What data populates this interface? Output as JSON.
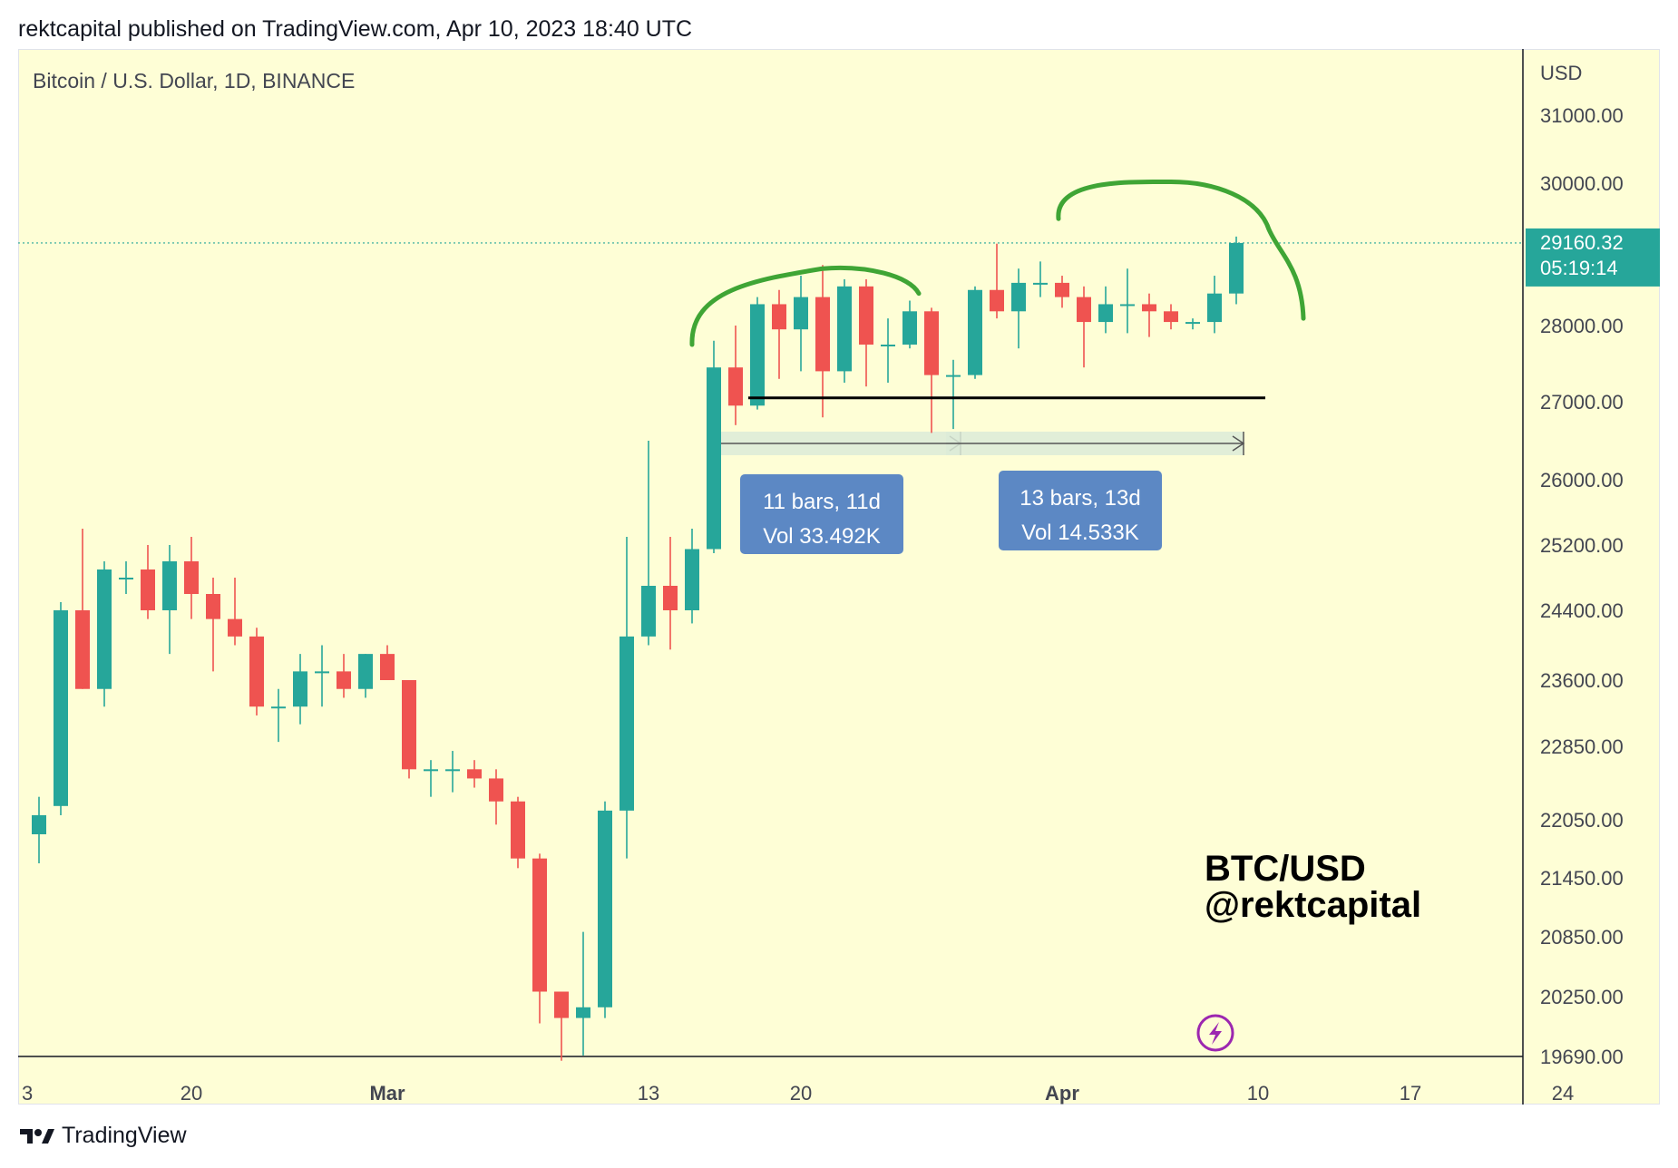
{
  "header": {
    "published": "rektcapital published on TradingView.com, Apr 10, 2023 18:40 UTC"
  },
  "symbol_title": "Bitcoin / U.S. Dollar, 1D, BINANCE",
  "footer": {
    "brand": "TradingView",
    "logo_icon": "tradingview-logo-icon"
  },
  "watermark": {
    "line1": "BTC/USD",
    "line2": "@rektcapital"
  },
  "colors": {
    "up": "#26a69a",
    "down": "#ef5350",
    "background": "#fefed6",
    "annotation": "#3fa535",
    "measure_box": "#5c88c4"
  },
  "chart_data": {
    "type": "candlestick",
    "currency": "USD",
    "yticks": [
      "31000.00",
      "30000.00",
      "28000.00",
      "27000.00",
      "26000.00",
      "25200.00",
      "24400.00",
      "23600.00",
      "22850.00",
      "22050.00",
      "21450.00",
      "20850.00",
      "20250.00",
      "19690.00"
    ],
    "xticks": [
      {
        "label": "3",
        "index": 0,
        "bold": false
      },
      {
        "label": "20",
        "index": 7,
        "bold": false
      },
      {
        "label": "Mar",
        "index": 16,
        "bold": true
      },
      {
        "label": "13",
        "index": 28,
        "bold": false
      },
      {
        "label": "20",
        "index": 35,
        "bold": false
      },
      {
        "label": "Apr",
        "index": 47,
        "bold": true
      },
      {
        "label": "10",
        "index": 56,
        "bold": false
      },
      {
        "label": "17",
        "index": 63,
        "bold": false
      },
      {
        "label": "24",
        "index": 70,
        "bold": false
      }
    ],
    "current_price": "29160.32",
    "countdown": "05:19:14",
    "candles": [
      {
        "o": 21900,
        "h": 22300,
        "l": 21600,
        "c": 22100
      },
      {
        "o": 22200,
        "h": 24500,
        "l": 22100,
        "c": 24400
      },
      {
        "o": 24400,
        "h": 25400,
        "l": 23500,
        "c": 23500
      },
      {
        "o": 23500,
        "h": 25000,
        "l": 23300,
        "c": 24900
      },
      {
        "o": 24800,
        "h": 25000,
        "l": 24600,
        "c": 24800
      },
      {
        "o": 24900,
        "h": 25200,
        "l": 24300,
        "c": 24400
      },
      {
        "o": 24400,
        "h": 25200,
        "l": 23900,
        "c": 25000
      },
      {
        "o": 25000,
        "h": 25300,
        "l": 24300,
        "c": 24600
      },
      {
        "o": 24600,
        "h": 24800,
        "l": 23700,
        "c": 24300
      },
      {
        "o": 24300,
        "h": 24800,
        "l": 24000,
        "c": 24100
      },
      {
        "o": 24100,
        "h": 24200,
        "l": 23200,
        "c": 23300
      },
      {
        "o": 23300,
        "h": 23500,
        "l": 22900,
        "c": 23300
      },
      {
        "o": 23300,
        "h": 23900,
        "l": 23100,
        "c": 23700
      },
      {
        "o": 23700,
        "h": 24000,
        "l": 23300,
        "c": 23700
      },
      {
        "o": 23700,
        "h": 23900,
        "l": 23400,
        "c": 23500
      },
      {
        "o": 23500,
        "h": 23900,
        "l": 23400,
        "c": 23900
      },
      {
        "o": 23900,
        "h": 24000,
        "l": 23600,
        "c": 23600
      },
      {
        "o": 23600,
        "h": 23600,
        "l": 22500,
        "c": 22600
      },
      {
        "o": 22600,
        "h": 22700,
        "l": 22300,
        "c": 22600
      },
      {
        "o": 22600,
        "h": 22800,
        "l": 22350,
        "c": 22600
      },
      {
        "o": 22600,
        "h": 22700,
        "l": 22400,
        "c": 22500
      },
      {
        "o": 22500,
        "h": 22600,
        "l": 22000,
        "c": 22250
      },
      {
        "o": 22250,
        "h": 22300,
        "l": 21550,
        "c": 21650
      },
      {
        "o": 21650,
        "h": 21700,
        "l": 20000,
        "c": 20300
      },
      {
        "o": 20300,
        "h": 20300,
        "l": 19650,
        "c": 20050
      },
      {
        "o": 20050,
        "h": 20900,
        "l": 19700,
        "c": 20150
      },
      {
        "o": 20150,
        "h": 22250,
        "l": 20050,
        "c": 22150
      },
      {
        "o": 22150,
        "h": 25300,
        "l": 21650,
        "c": 24100
      },
      {
        "o": 24100,
        "h": 26500,
        "l": 24000,
        "c": 24700
      },
      {
        "o": 24700,
        "h": 25300,
        "l": 23950,
        "c": 24400
      },
      {
        "o": 24400,
        "h": 25400,
        "l": 24250,
        "c": 25150
      },
      {
        "o": 25150,
        "h": 27800,
        "l": 25100,
        "c": 27450
      },
      {
        "o": 27450,
        "h": 28000,
        "l": 26700,
        "c": 26950
      },
      {
        "o": 26950,
        "h": 28400,
        "l": 26900,
        "c": 28300
      },
      {
        "o": 28300,
        "h": 28500,
        "l": 27300,
        "c": 27950
      },
      {
        "o": 27950,
        "h": 28700,
        "l": 27400,
        "c": 28400
      },
      {
        "o": 28400,
        "h": 28850,
        "l": 26800,
        "c": 27400
      },
      {
        "o": 27400,
        "h": 28650,
        "l": 27250,
        "c": 28550
      },
      {
        "o": 28550,
        "h": 28650,
        "l": 27200,
        "c": 27750
      },
      {
        "o": 27750,
        "h": 28100,
        "l": 27250,
        "c": 27750
      },
      {
        "o": 27750,
        "h": 28350,
        "l": 27700,
        "c": 28200
      },
      {
        "o": 28200,
        "h": 28250,
        "l": 26600,
        "c": 27350
      },
      {
        "o": 27350,
        "h": 27550,
        "l": 26650,
        "c": 27350
      },
      {
        "o": 27350,
        "h": 28550,
        "l": 27300,
        "c": 28500
      },
      {
        "o": 28500,
        "h": 29150,
        "l": 28100,
        "c": 28200
      },
      {
        "o": 28200,
        "h": 28800,
        "l": 27700,
        "c": 28600
      },
      {
        "o": 28600,
        "h": 28900,
        "l": 28400,
        "c": 28600
      },
      {
        "o": 28600,
        "h": 28700,
        "l": 28250,
        "c": 28400
      },
      {
        "o": 28400,
        "h": 28550,
        "l": 27450,
        "c": 28050
      },
      {
        "o": 28050,
        "h": 28550,
        "l": 27900,
        "c": 28300
      },
      {
        "o": 28300,
        "h": 28800,
        "l": 27900,
        "c": 28300
      },
      {
        "o": 28300,
        "h": 28450,
        "l": 27850,
        "c": 28200
      },
      {
        "o": 28200,
        "h": 28300,
        "l": 27950,
        "c": 28050
      },
      {
        "o": 28050,
        "h": 28100,
        "l": 27950,
        "c": 28050
      },
      {
        "o": 28050,
        "h": 28700,
        "l": 27900,
        "c": 28450
      },
      {
        "o": 28450,
        "h": 29250,
        "l": 28300,
        "c": 29160
      }
    ],
    "annotations": {
      "support_level": 27050,
      "measure_1": {
        "line1": "11 bars, 11d",
        "line2": "Vol 33.492K",
        "from": 31,
        "to": 42
      },
      "measure_2": {
        "line1": "13 bars, 13d",
        "line2": "Vol 14.533K",
        "from": 42,
        "to": 55
      }
    }
  }
}
